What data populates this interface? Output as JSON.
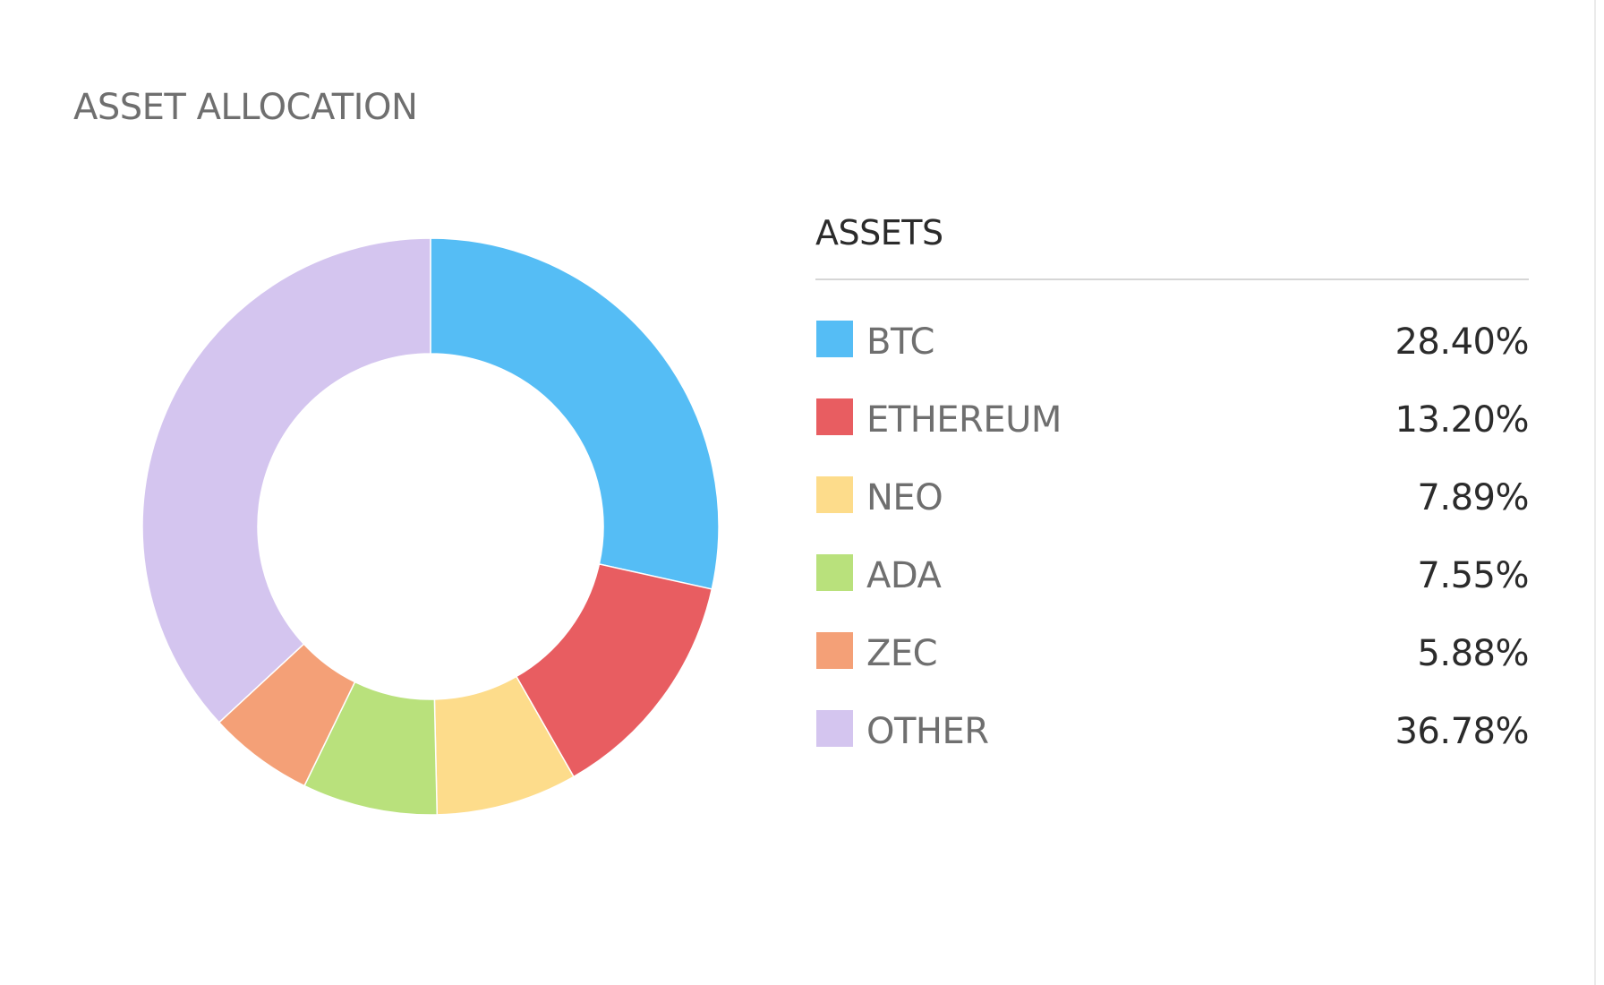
{
  "title": "ASSET ALLOCATION",
  "legend": {
    "heading": "ASSETS",
    "items": [
      {
        "label": "BTC",
        "value": "28.40%",
        "color": "#55bdf5"
      },
      {
        "label": "ETHEREUM",
        "value": "13.20%",
        "color": "#e85d61"
      },
      {
        "label": "NEO",
        "value": "7.89%",
        "color": "#fddc8b"
      },
      {
        "label": "ADA",
        "value": "7.55%",
        "color": "#b9e17c"
      },
      {
        "label": "ZEC",
        "value": "5.88%",
        "color": "#f4a077"
      },
      {
        "label": "OTHER",
        "value": "36.78%",
        "color": "#d4c5ef"
      }
    ]
  },
  "chart_data": {
    "type": "pie",
    "variant": "donut",
    "title": "ASSET ALLOCATION",
    "categories": [
      "BTC",
      "ETHEREUM",
      "NEO",
      "ADA",
      "ZEC",
      "OTHER"
    ],
    "values": [
      28.4,
      13.2,
      7.89,
      7.55,
      5.88,
      36.78
    ],
    "colors": [
      "#55bdf5",
      "#e85d61",
      "#fddc8b",
      "#b9e17c",
      "#f4a077",
      "#d4c5ef"
    ],
    "start_angle": "top",
    "direction": "clockwise",
    "legend_position": "right"
  }
}
